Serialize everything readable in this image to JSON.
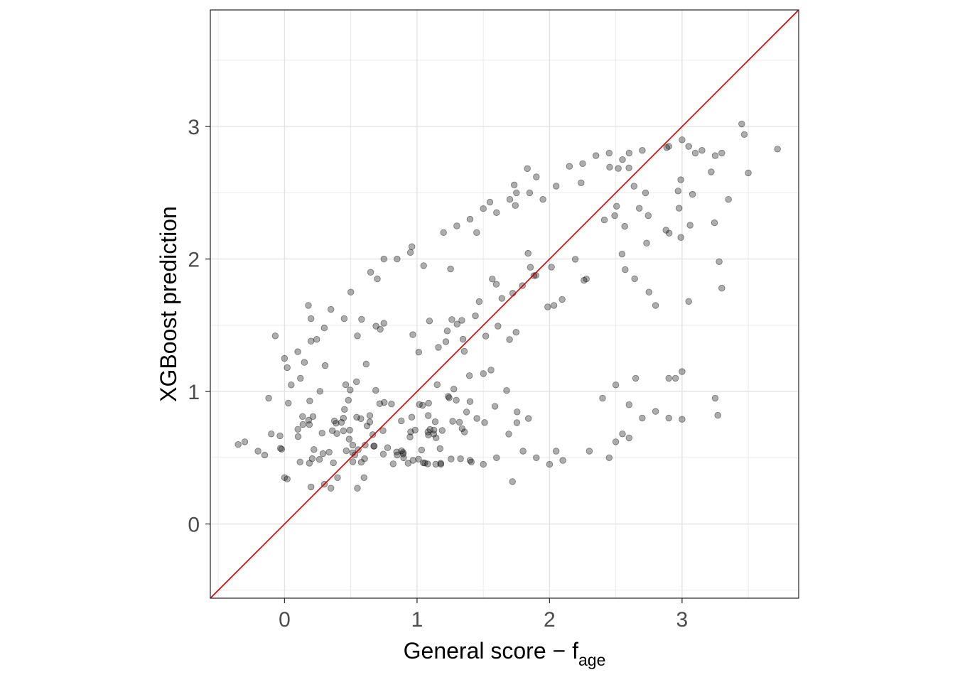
{
  "chart_data": {
    "type": "scatter",
    "title": "",
    "xlabel": "General score − f",
    "xlabel_subscript": "age",
    "ylabel": "XGBoost prediction",
    "xlim": [
      -0.56,
      3.88
    ],
    "ylim": [
      -0.56,
      3.88
    ],
    "x_ticks": [
      0,
      1,
      2,
      3
    ],
    "y_ticks": [
      0,
      1,
      2,
      3
    ],
    "x_tick_labels": [
      "0",
      "1",
      "2",
      "3"
    ],
    "y_tick_labels": [
      "0",
      "1",
      "2",
      "3"
    ],
    "grid": true,
    "point_color": "#000000",
    "point_alpha": 0.32,
    "reference_line": {
      "label": "",
      "slope": 1,
      "intercept": 0,
      "color": "#cc0000"
    },
    "clusters": [
      {
        "x_range": [
          -0.05,
          1.45
        ],
        "y_range": [
          0.44,
          0.5
        ],
        "count": 22
      },
      {
        "x_range": [
          -0.05,
          1.3
        ],
        "y_range": [
          0.52,
          0.6
        ],
        "count": 22
      },
      {
        "x_range": [
          -0.05,
          1.7
        ],
        "y_range": [
          0.64,
          0.72
        ],
        "count": 24
      },
      {
        "x_range": [
          -0.05,
          1.9
        ],
        "y_range": [
          0.74,
          0.82
        ],
        "count": 24
      },
      {
        "x_range": [
          -0.05,
          1.8
        ],
        "y_range": [
          0.84,
          1.02
        ],
        "count": 22
      },
      {
        "x_range": [
          0.2,
          1.9
        ],
        "y_range": [
          1.0,
          1.6
        ],
        "count": 22
      },
      {
        "x_range": [
          0.9,
          2.3
        ],
        "y_range": [
          1.3,
          2.1
        ],
        "count": 22
      },
      {
        "x_range": [
          1.7,
          3.0
        ],
        "y_range": [
          1.8,
          2.7
        ],
        "count": 22
      },
      {
        "x_range": [
          2.4,
          3.4
        ],
        "y_range": [
          2.2,
          2.9
        ],
        "count": 12
      }
    ],
    "points": [
      [
        -0.35,
        0.6
      ],
      [
        -0.3,
        0.62
      ],
      [
        -0.2,
        0.55
      ],
      [
        -0.15,
        0.52
      ],
      [
        -0.1,
        0.68
      ],
      [
        -0.12,
        0.95
      ],
      [
        -0.07,
        1.42
      ],
      [
        0.0,
        1.25
      ],
      [
        0.02,
        1.18
      ],
      [
        0.05,
        1.05
      ],
      [
        0.1,
        1.3
      ],
      [
        0.15,
        1.22
      ],
      [
        0.2,
        1.38
      ],
      [
        0.12,
        1.1
      ],
      [
        0.0,
        0.35
      ],
      [
        0.02,
        0.34
      ],
      [
        0.2,
        0.28
      ],
      [
        0.3,
        0.3
      ],
      [
        0.35,
        0.27
      ],
      [
        0.55,
        0.27
      ],
      [
        0.4,
        0.35
      ],
      [
        0.6,
        0.35
      ],
      [
        0.18,
        1.65
      ],
      [
        0.2,
        1.55
      ],
      [
        0.3,
        1.48
      ],
      [
        0.35,
        1.62
      ],
      [
        0.45,
        1.55
      ],
      [
        0.5,
        1.75
      ],
      [
        0.55,
        1.42
      ],
      [
        0.65,
        1.9
      ],
      [
        0.7,
        1.85
      ],
      [
        0.75,
        2.0
      ],
      [
        0.85,
        2.0
      ],
      [
        0.95,
        2.05
      ],
      [
        1.05,
        1.95
      ],
      [
        1.2,
        2.2
      ],
      [
        1.3,
        2.25
      ],
      [
        1.4,
        2.3
      ],
      [
        1.45,
        2.2
      ],
      [
        1.5,
        2.38
      ],
      [
        1.55,
        2.43
      ],
      [
        1.6,
        2.35
      ],
      [
        1.7,
        2.45
      ],
      [
        1.75,
        2.5
      ],
      [
        1.85,
        2.5
      ],
      [
        1.9,
        2.62
      ],
      [
        1.95,
        2.45
      ],
      [
        2.05,
        2.55
      ],
      [
        2.15,
        2.7
      ],
      [
        2.25,
        2.72
      ],
      [
        2.35,
        2.78
      ],
      [
        2.45,
        2.8
      ],
      [
        2.55,
        2.75
      ],
      [
        2.6,
        2.8
      ],
      [
        2.7,
        2.82
      ],
      [
        2.9,
        2.85
      ],
      [
        3.0,
        2.9
      ],
      [
        3.05,
        2.85
      ],
      [
        3.1,
        2.8
      ],
      [
        3.15,
        2.82
      ],
      [
        3.25,
        2.78
      ],
      [
        3.45,
        3.02
      ],
      [
        3.47,
        2.94
      ],
      [
        3.5,
        2.65
      ],
      [
        3.72,
        2.83
      ],
      [
        3.3,
        2.8
      ],
      [
        3.35,
        2.45
      ],
      [
        3.3,
        1.78
      ],
      [
        3.28,
        1.98
      ],
      [
        3.05,
        1.68
      ],
      [
        2.75,
        1.75
      ],
      [
        2.8,
        1.65
      ],
      [
        1.72,
        0.32
      ],
      [
        1.4,
        0.48
      ],
      [
        1.5,
        0.45
      ],
      [
        1.6,
        0.5
      ],
      [
        1.8,
        0.55
      ],
      [
        1.9,
        0.5
      ],
      [
        2.0,
        0.45
      ],
      [
        2.05,
        0.55
      ],
      [
        2.1,
        0.48
      ],
      [
        2.3,
        0.55
      ],
      [
        2.45,
        0.5
      ],
      [
        2.5,
        0.62
      ],
      [
        2.55,
        0.68
      ],
      [
        2.6,
        0.65
      ],
      [
        2.7,
        0.8
      ],
      [
        2.8,
        0.85
      ],
      [
        2.9,
        0.8
      ],
      [
        3.0,
        0.79
      ],
      [
        2.95,
        1.1
      ],
      [
        3.0,
        1.15
      ],
      [
        2.9,
        1.1
      ],
      [
        3.25,
        0.95
      ],
      [
        3.27,
        0.82
      ],
      [
        2.6,
        0.9
      ],
      [
        2.4,
        0.95
      ],
      [
        2.5,
        1.05
      ],
      [
        2.65,
        1.1
      ]
    ]
  }
}
